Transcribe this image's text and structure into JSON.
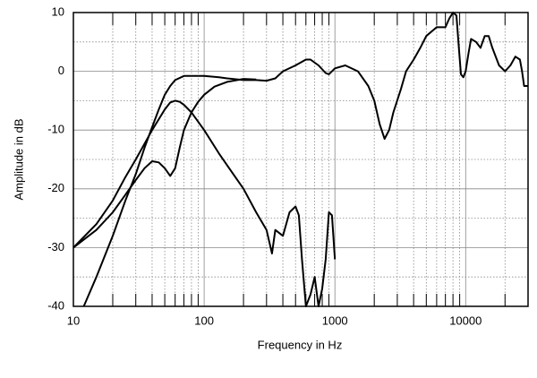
{
  "chart_data": {
    "type": "line",
    "xlabel": "Frequency in Hz",
    "ylabel": "Amplitude in dB",
    "log_x": true,
    "grid": true,
    "xlim": [
      10,
      30000
    ],
    "xticks": [
      10,
      100,
      1000,
      10000
    ],
    "ylim": [
      -40,
      10
    ],
    "yticks": [
      -40,
      -30,
      -20,
      -10,
      0,
      10
    ],
    "series": [
      {
        "color": "#000000",
        "x": [
          12,
          15,
          20,
          25,
          30,
          35,
          40,
          45,
          50,
          55,
          60,
          70,
          80,
          100,
          130,
          150,
          200,
          250,
          300,
          350,
          400,
          500,
          600,
          650,
          750,
          850,
          900,
          1000,
          1200,
          1500,
          1800,
          2000,
          2200,
          2400,
          2600,
          2800,
          3200,
          3500,
          4000,
          4500,
          5000,
          6000,
          7000,
          7500,
          8000,
          8500,
          8800,
          9200,
          9600,
          10000,
          10500,
          11000,
          12000,
          13000,
          14000,
          15000,
          16000,
          18000,
          20000,
          22000,
          24000,
          26000,
          27000,
          28000,
          30000
        ],
        "values": [
          -40,
          -35,
          -28,
          -22,
          -17.5,
          -13,
          -9.5,
          -6.5,
          -4,
          -2.5,
          -1.5,
          -0.8,
          -0.8,
          -0.8,
          -1,
          -1.2,
          -1.5,
          -1.5,
          -1.6,
          -1.2,
          0,
          1,
          2,
          2,
          1,
          -0.3,
          -0.5,
          0.5,
          1,
          0,
          -2.5,
          -5,
          -9,
          -11.5,
          -10,
          -7,
          -3,
          0,
          2,
          4,
          6,
          7.5,
          7.5,
          9,
          10,
          9.5,
          5,
          -0.5,
          -1,
          0,
          3,
          5.5,
          5,
          4,
          6,
          6,
          4,
          1,
          0,
          1,
          2.5,
          2,
          0,
          -2.5,
          -2.5
        ]
      },
      {
        "color": "#000000",
        "x": [
          10,
          15,
          20,
          25,
          30,
          35,
          40,
          45,
          50,
          55,
          60,
          65,
          70,
          80,
          90,
          100,
          120,
          150,
          200,
          250
        ],
        "values": [
          -30,
          -27,
          -24,
          -21,
          -18.5,
          -16.5,
          -15.3,
          -15.5,
          -16.5,
          -17.8,
          -16.5,
          -13,
          -10,
          -7,
          -5.2,
          -4,
          -2.6,
          -1.8,
          -1.3,
          -1.4
        ]
      },
      {
        "color": "#000000",
        "x": [
          10,
          15,
          20,
          25,
          30,
          40,
          50,
          55,
          60,
          65,
          70,
          80,
          100,
          130,
          150,
          200,
          250,
          300,
          330,
          350,
          400,
          450,
          500,
          530,
          560,
          600,
          650,
          700,
          750,
          800,
          850,
          900,
          950,
          1000
        ],
        "values": [
          -30,
          -26,
          -22,
          -18,
          -15,
          -10,
          -6.5,
          -5.3,
          -5,
          -5.2,
          -5.7,
          -7,
          -10,
          -14,
          -16,
          -20,
          -24,
          -27,
          -31,
          -27,
          -28,
          -24,
          -23,
          -24.5,
          -32,
          -40,
          -38,
          -35,
          -40,
          -37,
          -32,
          -24,
          -24.5,
          -32
        ]
      }
    ]
  }
}
